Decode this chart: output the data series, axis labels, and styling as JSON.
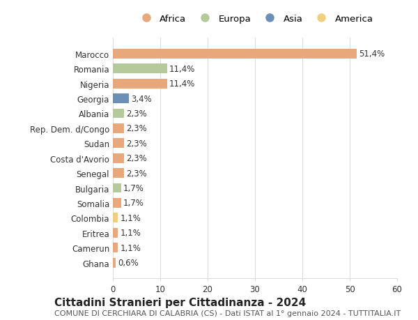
{
  "countries": [
    "Marocco",
    "Romania",
    "Nigeria",
    "Georgia",
    "Albania",
    "Rep. Dem. d/Congo",
    "Sudan",
    "Costa d'Avorio",
    "Senegal",
    "Bulgaria",
    "Somalia",
    "Colombia",
    "Eritrea",
    "Camerun",
    "Ghana"
  ],
  "values": [
    51.4,
    11.4,
    11.4,
    3.4,
    2.3,
    2.3,
    2.3,
    2.3,
    2.3,
    1.7,
    1.7,
    1.1,
    1.1,
    1.1,
    0.6
  ],
  "labels": [
    "51,4%",
    "11,4%",
    "11,4%",
    "3,4%",
    "2,3%",
    "2,3%",
    "2,3%",
    "2,3%",
    "2,3%",
    "1,7%",
    "1,7%",
    "1,1%",
    "1,1%",
    "1,1%",
    "0,6%"
  ],
  "continents": [
    "Africa",
    "Europa",
    "Africa",
    "Asia",
    "Europa",
    "Africa",
    "Africa",
    "Africa",
    "Africa",
    "Europa",
    "Africa",
    "America",
    "Africa",
    "Africa",
    "Africa"
  ],
  "continent_colors": {
    "Africa": "#E8A87C",
    "Europa": "#B5C99A",
    "Asia": "#6B8FB5",
    "America": "#F0D080"
  },
  "legend_order": [
    "Africa",
    "Europa",
    "Asia",
    "America"
  ],
  "xlim": [
    0,
    60
  ],
  "xticks": [
    0,
    10,
    20,
    30,
    40,
    50,
    60
  ],
  "title": "Cittadini Stranieri per Cittadinanza - 2024",
  "subtitle": "COMUNE DI CERCHIARA DI CALABRIA (CS) - Dati ISTAT al 1° gennaio 2024 - TUTTITALIA.IT",
  "background_color": "#ffffff",
  "grid_color": "#dddddd",
  "bar_height": 0.65,
  "title_fontsize": 11,
  "subtitle_fontsize": 8,
  "label_fontsize": 8.5,
  "tick_fontsize": 8.5
}
